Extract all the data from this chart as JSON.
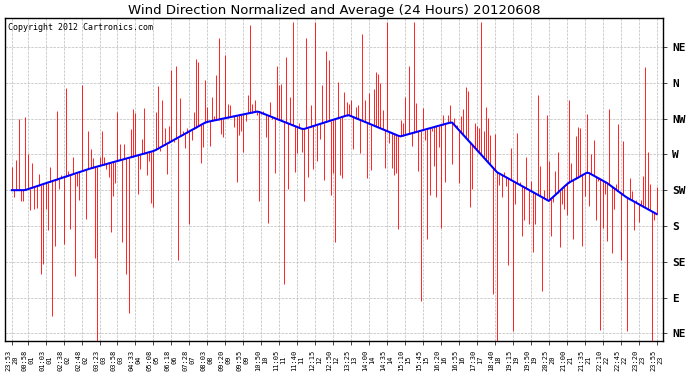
{
  "title": "Wind Direction Normalized and Average (24 Hours) 20120608",
  "copyright": "Copyright 2012 Cartronics.com",
  "ytick_labels": [
    "NE",
    "N",
    "NW",
    "W",
    "SW",
    "S",
    "SE",
    "E",
    "NE"
  ],
  "ytick_values": [
    8,
    7,
    6,
    5,
    4,
    3,
    2,
    1,
    0
  ],
  "background_color": "#ffffff",
  "grid_color": "#bbbbbb",
  "red_color": "#ff0000",
  "blue_color": "#0000ff",
  "ylim": [
    -0.2,
    8.8
  ],
  "seed": 42,
  "n_points": 288,
  "xtick_labels": [
    "23:53",
    "00:58",
    "01:03",
    "02:38",
    "02:48",
    "03:23",
    "03:58",
    "04:33",
    "05:08",
    "06:18",
    "07:28",
    "08:03",
    "09:20",
    "09:55",
    "10:50",
    "11:05",
    "11:40",
    "12:15",
    "12:50",
    "13:25",
    "14:00",
    "14:35",
    "15:10",
    "15:45",
    "16:20",
    "16:55",
    "17:30",
    "18:40",
    "19:15",
    "19:50",
    "20:25",
    "21:00",
    "21:35",
    "22:10",
    "22:45",
    "23:20",
    "23:55"
  ],
  "xtick_dates": [
    "20",
    "01",
    "01",
    "02",
    "02",
    "03",
    "03",
    "04",
    "05",
    "06",
    "07",
    "08",
    "09",
    "09",
    "10",
    "11",
    "11",
    "12",
    "12",
    "13",
    "14",
    "14",
    "15",
    "15",
    "16",
    "16",
    "17",
    "18",
    "19",
    "19",
    "20",
    "21",
    "21",
    "22",
    "22",
    "23",
    "23"
  ],
  "figsize": [
    6.9,
    3.75
  ],
  "dpi": 100
}
